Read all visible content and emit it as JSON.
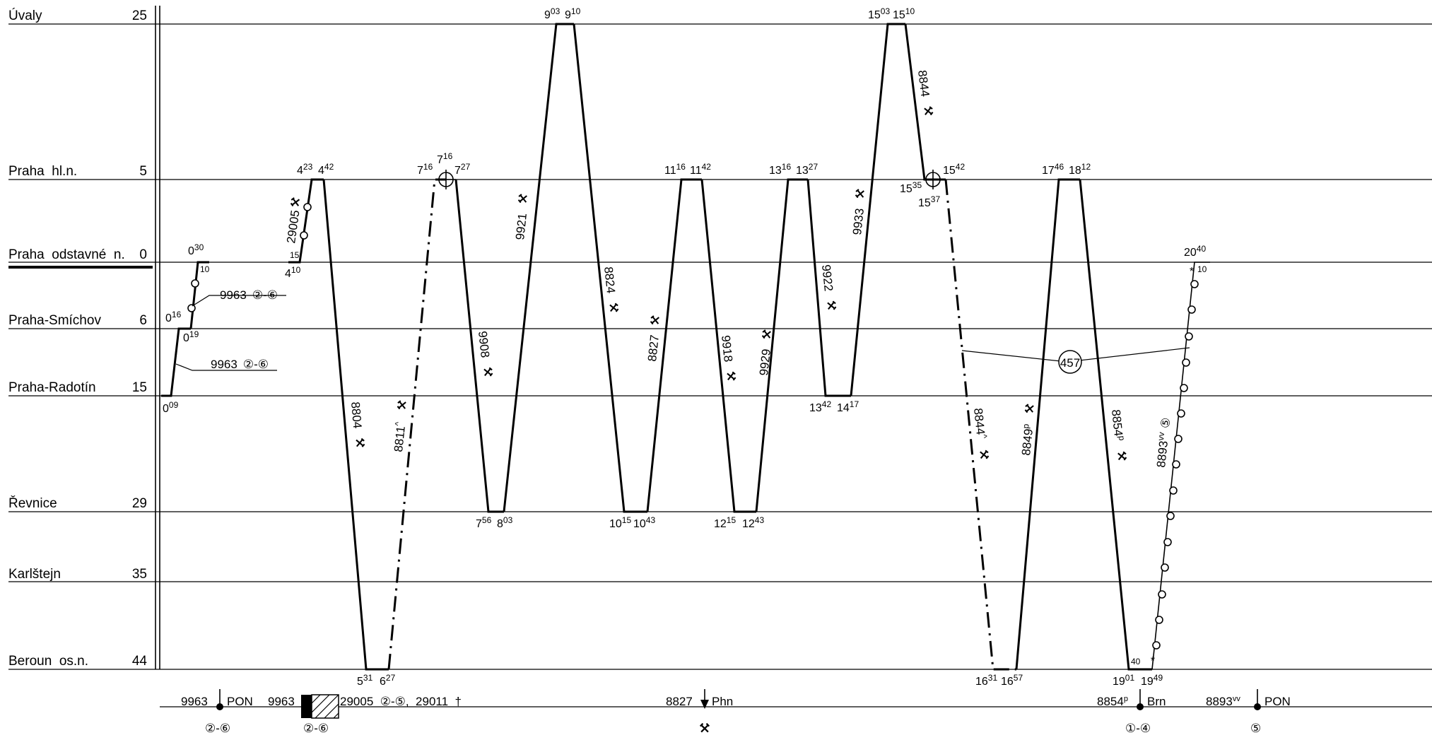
{
  "stations": [
    {
      "name": "Úvaly",
      "km": "25"
    },
    {
      "name": "Praha  hl.n.",
      "km": "5"
    },
    {
      "name": "Praha  odstavné  n.",
      "km": "0"
    },
    {
      "name": "Praha-Smíchov",
      "km": "6"
    },
    {
      "name": "Praha-Radotín",
      "km": "15"
    },
    {
      "name": "Řevnice",
      "km": "29"
    },
    {
      "name": "Karlštejn",
      "km": "35"
    },
    {
      "name": "Beroun  os.n.",
      "km": "44"
    }
  ],
  "times": [
    {
      "h": "0",
      "m": "09"
    },
    {
      "h": "0",
      "m": "19"
    },
    {
      "h": "0",
      "m": "16"
    },
    {
      "h": "0",
      "m": "30"
    },
    {
      "h": "4",
      "m": "10"
    },
    {
      "h": "4",
      "m": "23"
    },
    {
      "h": "4",
      "m": "42"
    },
    {
      "h": "5",
      "m": "31"
    },
    {
      "h": "6",
      "m": "27"
    },
    {
      "h": "7",
      "m": "16"
    },
    {
      "h": "7",
      "m": "16"
    },
    {
      "h": "7",
      "m": "27"
    },
    {
      "h": "7",
      "m": "56"
    },
    {
      "h": "8",
      "m": "03"
    },
    {
      "h": "9",
      "m": "03"
    },
    {
      "h": "9",
      "m": "10"
    },
    {
      "h": "10",
      "m": "15"
    },
    {
      "h": "10",
      "m": "43"
    },
    {
      "h": "11",
      "m": "16"
    },
    {
      "h": "11",
      "m": "42"
    },
    {
      "h": "12",
      "m": "15"
    },
    {
      "h": "12",
      "m": "43"
    },
    {
      "h": "13",
      "m": "16"
    },
    {
      "h": "13",
      "m": "27"
    },
    {
      "h": "13",
      "m": "42"
    },
    {
      "h": "14",
      "m": "17"
    },
    {
      "h": "15",
      "m": "03"
    },
    {
      "h": "15",
      "m": "10"
    },
    {
      "h": "15",
      "m": "35"
    },
    {
      "h": "15",
      "m": "37"
    },
    {
      "h": "15",
      "m": "42"
    },
    {
      "h": "16",
      "m": "31"
    },
    {
      "h": "16",
      "m": "57"
    },
    {
      "h": "17",
      "m": "46"
    },
    {
      "h": "18",
      "m": "12"
    },
    {
      "h": "19",
      "m": "01"
    },
    {
      "h": "19",
      "m": "49"
    },
    {
      "h": "20",
      "m": "40"
    }
  ],
  "minute_marks": [
    "10",
    "15",
    "10",
    "40",
    "10"
  ],
  "trains": [
    {
      "base": "9963",
      "sup": ""
    },
    {
      "base": "9963",
      "sup": ""
    },
    {
      "base": "29005",
      "sup": ""
    },
    {
      "base": "8804",
      "sup": ""
    },
    {
      "base": "8811",
      "sup": "^"
    },
    {
      "base": "9908",
      "sup": ""
    },
    {
      "base": "9921",
      "sup": ""
    },
    {
      "base": "8824",
      "sup": ""
    },
    {
      "base": "8827",
      "sup": ""
    },
    {
      "base": "9918",
      "sup": ""
    },
    {
      "base": "9929",
      "sup": ""
    },
    {
      "base": "9922",
      "sup": ""
    },
    {
      "base": "9933",
      "sup": ""
    },
    {
      "base": "8844",
      "sup": ""
    },
    {
      "base": "8844",
      "sup": "^"
    },
    {
      "base": "8849",
      "sup": "p"
    },
    {
      "base": "8854",
      "sup": "p"
    },
    {
      "base": "8893",
      "sup": "vv"
    }
  ],
  "train_days": [
    "②-⑥",
    "②-⑥",
    "⑤"
  ],
  "circle_label": "457",
  "legend": {
    "items": [
      {
        "text": "9963"
      },
      {
        "text": "PON"
      },
      {
        "text": "9963"
      },
      {
        "text": "29005  ②-⑤,  29011  †"
      },
      {
        "text": "8827"
      },
      {
        "text": "Phn"
      },
      {
        "text": "8854"
      },
      {
        "text": "Brn"
      },
      {
        "text": "8893"
      },
      {
        "text": "PON"
      }
    ],
    "sups": [
      "p",
      "vv"
    ],
    "days": [
      "②-⑥",
      "②-⑥",
      "①-④",
      "⑤"
    ]
  }
}
